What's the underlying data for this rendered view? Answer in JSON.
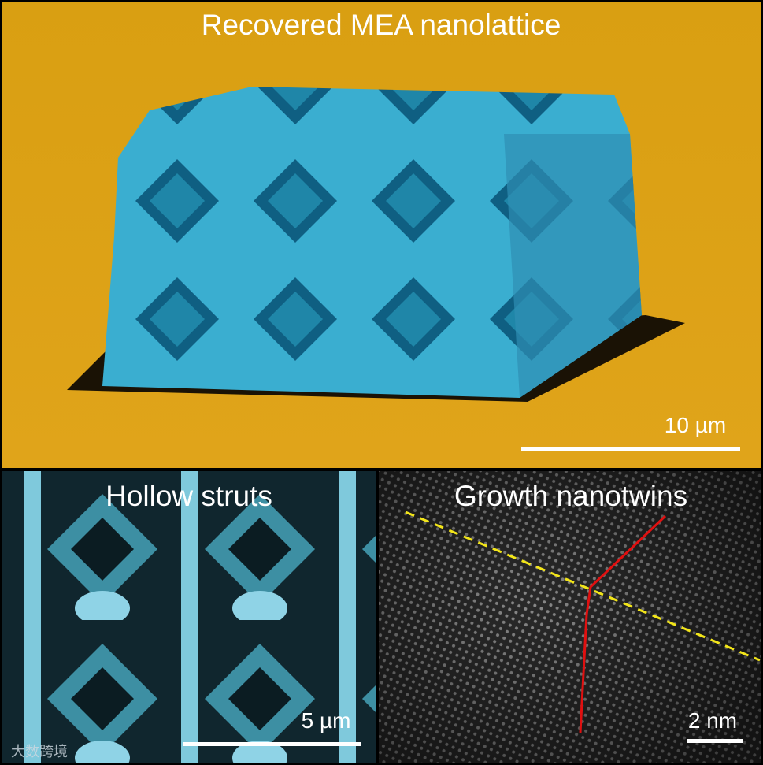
{
  "panels": [
    {
      "title": "Recovered MEA nanolattice",
      "scale_bar": "10 µm"
    },
    {
      "title": "Hollow struts",
      "scale_bar": "5 µm"
    },
    {
      "title": "Growth nanotwins",
      "scale_bar": "2 nm"
    }
  ],
  "watermark": "大数跨境"
}
